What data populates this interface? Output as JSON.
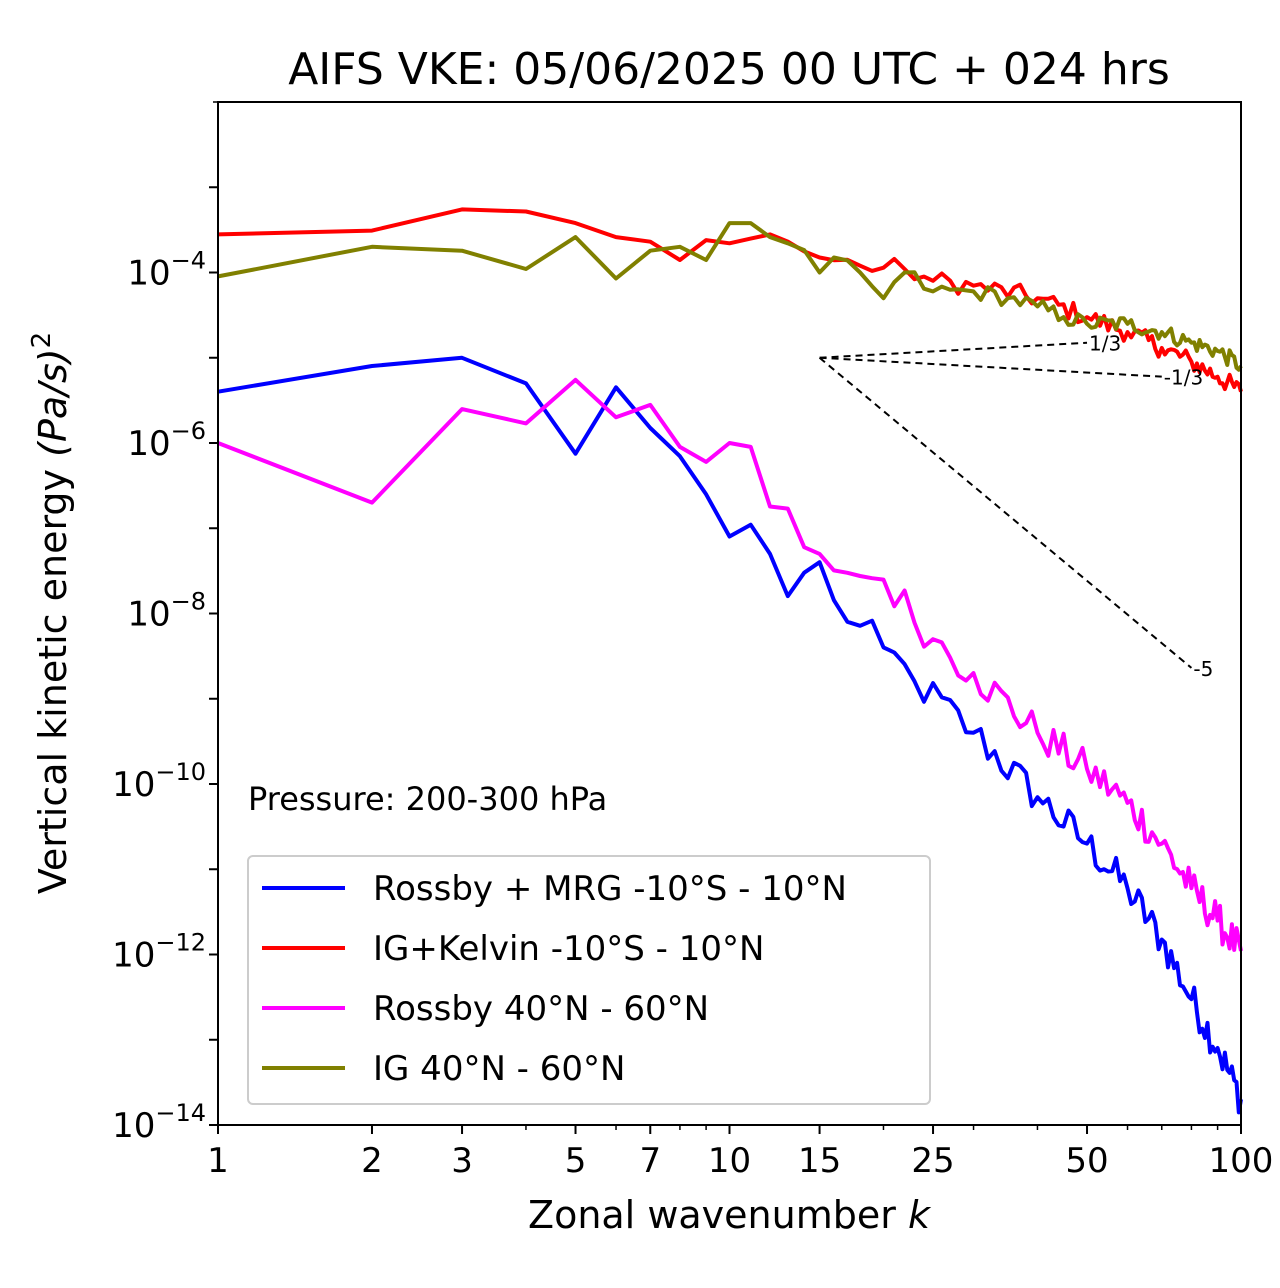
{
  "chart_data": {
    "type": "line",
    "title": "AIFS VKE: 05/06/2025 00 UTC + 024 hrs",
    "xlabel": "Zonal wavenumber",
    "xlabel_var": "k",
    "ylabel": "Vertical kinetic energy",
    "ylabel_units": "(Pa/s)",
    "ylabel_exp": "2",
    "xscale": "log",
    "yscale": "log",
    "xlim": [
      1,
      100
    ],
    "ylim": [
      1e-14,
      0.01
    ],
    "xticks": [
      {
        "value": 1,
        "label": "1"
      },
      {
        "value": 2,
        "label": "2"
      },
      {
        "value": 3,
        "label": "3"
      },
      {
        "value": 5,
        "label": "5"
      },
      {
        "value": 7,
        "label": "7"
      },
      {
        "value": 10,
        "label": "10"
      },
      {
        "value": 15,
        "label": "15"
      },
      {
        "value": 25,
        "label": "25"
      },
      {
        "value": 50,
        "label": "50"
      },
      {
        "value": 100,
        "label": "100"
      }
    ],
    "yticks": [
      {
        "value": 0.0001,
        "base": "10",
        "exp": "−4"
      },
      {
        "value": 1e-06,
        "base": "10",
        "exp": "−6"
      },
      {
        "value": 1e-08,
        "base": "10",
        "exp": "−8"
      },
      {
        "value": 1e-10,
        "base": "10",
        "exp": "−10"
      },
      {
        "value": 1e-12,
        "base": "10",
        "exp": "−12"
      },
      {
        "value": 1e-14,
        "base": "10",
        "exp": "−14"
      }
    ],
    "annotation": "Pressure: 200-300 hPa",
    "legend_position": "lower-left",
    "reference_slopes": [
      {
        "label": "1/3",
        "x": [
          15,
          50
        ],
        "y": [
          1e-05,
          1.5e-05
        ]
      },
      {
        "label": "-1/3",
        "x": [
          15,
          70
        ],
        "y": [
          1e-05,
          6e-06
        ]
      },
      {
        "label": "-5",
        "x": [
          15,
          80
        ],
        "y": [
          1e-05,
          2.3e-09
        ]
      }
    ],
    "series": [
      {
        "name": "Rossby + MRG -10°S - 10°N",
        "color": "#0000ff",
        "anchors": [
          [
            1,
            4e-06
          ],
          [
            2,
            8e-06
          ],
          [
            3,
            1e-05
          ],
          [
            4,
            5e-06
          ],
          [
            5,
            7.5e-07
          ],
          [
            6,
            4.5e-06
          ],
          [
            7,
            1.5e-06
          ],
          [
            8,
            7e-07
          ],
          [
            9,
            2.5e-07
          ],
          [
            10,
            8e-08
          ],
          [
            11,
            1.1e-07
          ],
          [
            12,
            5e-08
          ],
          [
            13,
            1.6e-08
          ],
          [
            15,
            4e-08
          ],
          [
            17,
            8e-09
          ],
          [
            20,
            4e-09
          ],
          [
            23,
            1.6e-09
          ],
          [
            30,
            4e-10
          ],
          [
            40,
            7e-11
          ],
          [
            50,
            2e-11
          ],
          [
            60,
            6e-12
          ],
          [
            70,
            1.5e-12
          ],
          [
            80,
            3e-13
          ],
          [
            90,
            8e-14
          ],
          [
            100,
            2e-14
          ]
        ]
      },
      {
        "name": "IG+Kelvin -10°S - 10°N",
        "color": "#ff0000",
        "anchors": [
          [
            1,
            0.00028
          ],
          [
            2,
            0.00031
          ],
          [
            3,
            0.00055
          ],
          [
            4,
            0.00052
          ],
          [
            5,
            0.00038
          ],
          [
            6,
            0.00026
          ],
          [
            7,
            0.00023
          ],
          [
            8,
            0.00014
          ],
          [
            9,
            0.00024
          ],
          [
            10,
            0.00022
          ],
          [
            12,
            0.00028
          ],
          [
            15,
            0.00015
          ],
          [
            18,
            0.00012
          ],
          [
            22,
            0.00011
          ],
          [
            25,
            8e-05
          ],
          [
            30,
            7e-05
          ],
          [
            40,
            5e-05
          ],
          [
            50,
            3e-05
          ],
          [
            60,
            2e-05
          ],
          [
            70,
            1.3e-05
          ],
          [
            80,
            9e-06
          ],
          [
            90,
            6e-06
          ],
          [
            100,
            4e-06
          ]
        ]
      },
      {
        "name": "Rossby 40°N - 60°N",
        "color": "#ff00ff",
        "anchors": [
          [
            1,
            1e-06
          ],
          [
            2,
            2e-07
          ],
          [
            3,
            2.5e-06
          ],
          [
            4,
            1.7e-06
          ],
          [
            5,
            5.5e-06
          ],
          [
            6,
            2e-06
          ],
          [
            7,
            2.8e-06
          ],
          [
            8,
            9e-07
          ],
          [
            9,
            6e-07
          ],
          [
            10,
            1e-06
          ],
          [
            11,
            9e-07
          ],
          [
            12,
            1.8e-07
          ],
          [
            13,
            1.7e-07
          ],
          [
            14,
            6e-08
          ],
          [
            15,
            5e-08
          ],
          [
            17,
            3e-08
          ],
          [
            20,
            2.5e-08
          ],
          [
            25,
            5e-09
          ],
          [
            30,
            2e-09
          ],
          [
            40,
            4e-10
          ],
          [
            50,
            1.5e-10
          ],
          [
            60,
            6e-11
          ],
          [
            70,
            2e-11
          ],
          [
            80,
            6e-12
          ],
          [
            90,
            2.5e-12
          ],
          [
            100,
            1.1e-12
          ]
        ]
      },
      {
        "name": "IG 40°N - 60°N",
        "color": "#808000",
        "anchors": [
          [
            1,
            9e-05
          ],
          [
            2,
            0.0002
          ],
          [
            3,
            0.00018
          ],
          [
            4,
            0.00011
          ],
          [
            5,
            0.00026
          ],
          [
            6,
            8.5e-05
          ],
          [
            7,
            0.00018
          ],
          [
            8,
            0.0002
          ],
          [
            9,
            0.00014
          ],
          [
            10,
            0.00038
          ],
          [
            11,
            0.00038
          ],
          [
            12,
            0.00026
          ],
          [
            13,
            0.00022
          ],
          [
            15,
            0.0001
          ],
          [
            16,
            0.00015
          ],
          [
            18,
            0.0001
          ],
          [
            20,
            5e-05
          ],
          [
            22,
            0.0001
          ],
          [
            25,
            6e-05
          ],
          [
            30,
            6e-05
          ],
          [
            35,
            5e-05
          ],
          [
            40,
            4e-05
          ],
          [
            45,
            3e-05
          ],
          [
            50,
            2.5e-05
          ],
          [
            60,
            2.5e-05
          ],
          [
            70,
            2e-05
          ],
          [
            80,
            1.5e-05
          ],
          [
            90,
            1.2e-05
          ],
          [
            100,
            8e-06
          ]
        ]
      }
    ]
  }
}
